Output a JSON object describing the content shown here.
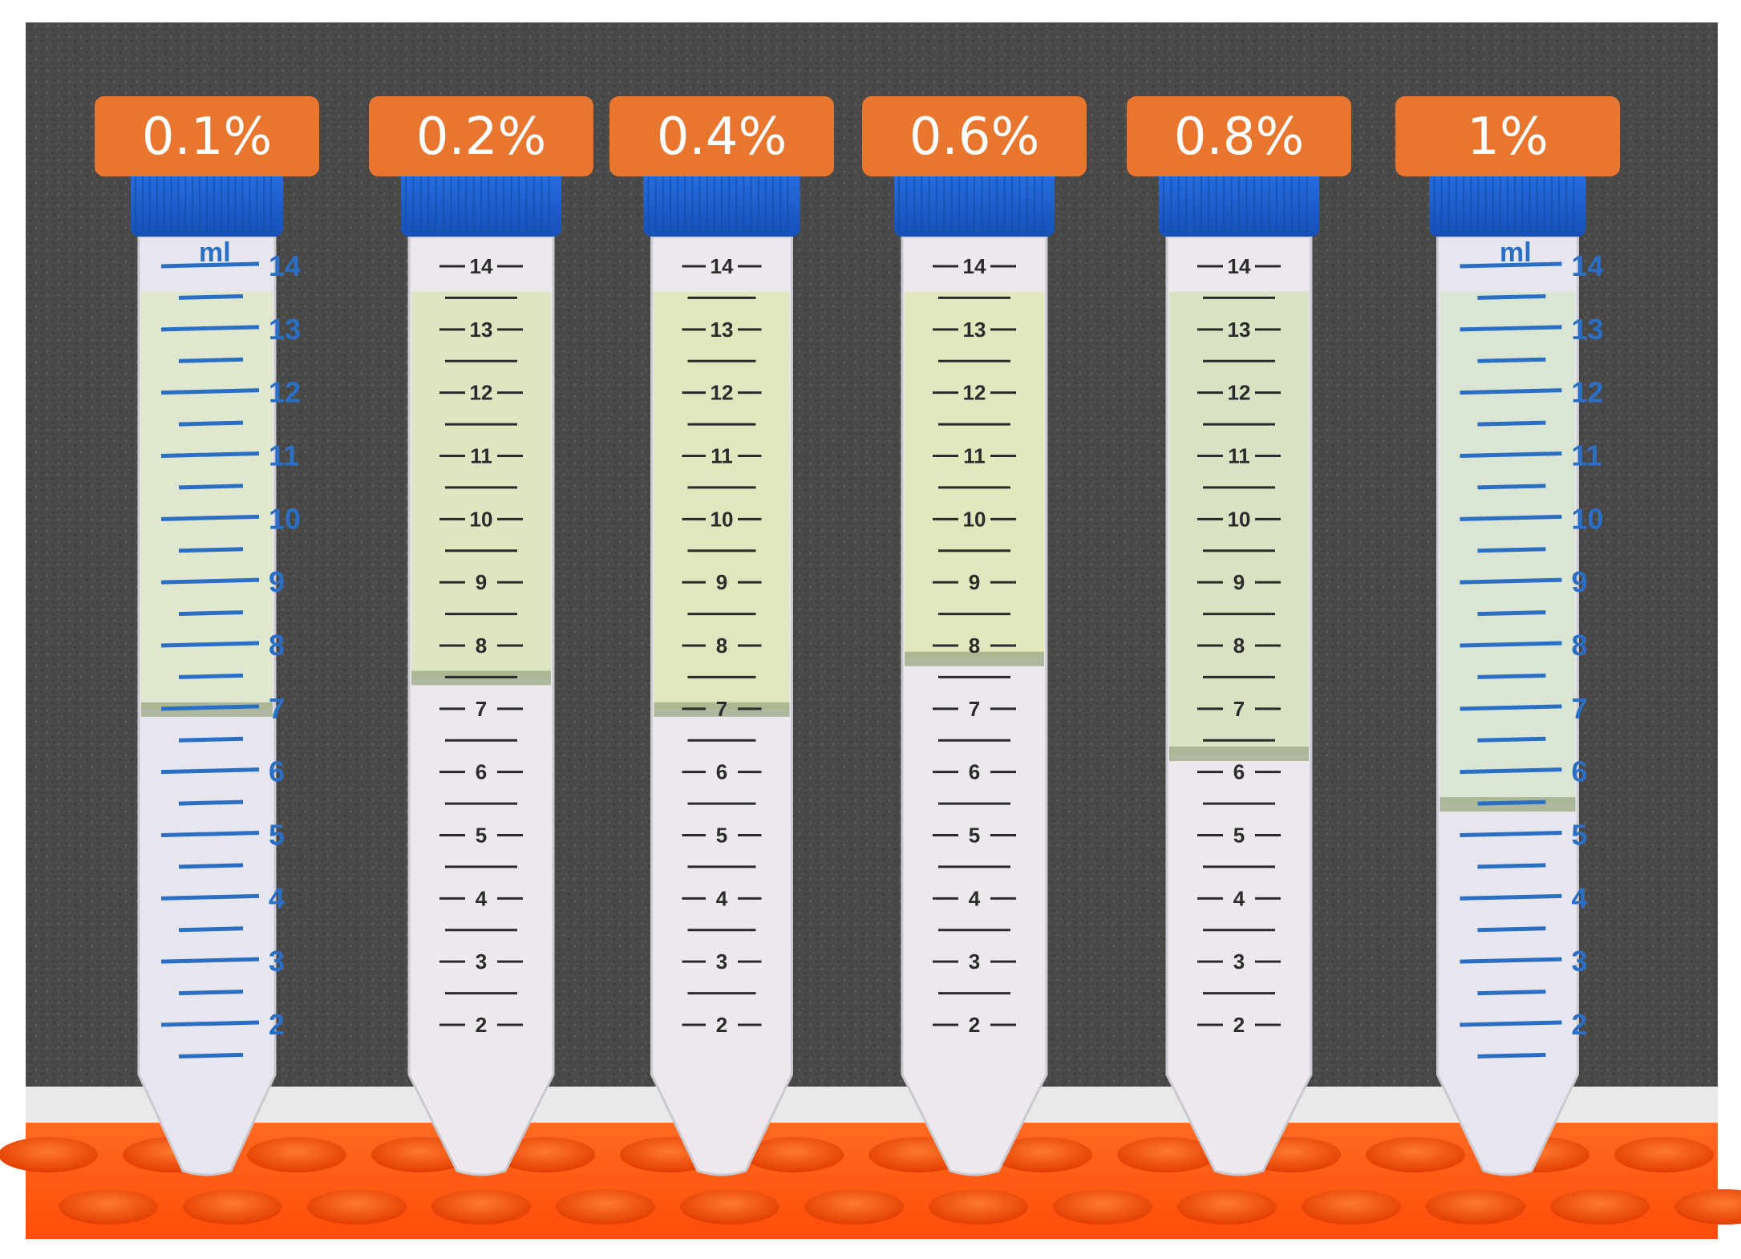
{
  "colors": {
    "label_bg": "#e8762f",
    "label_text": "#ffffff",
    "cap_blue": "#1f63d6",
    "rack_orange": "#ff5a14",
    "foam_gray": "#4d4a4a",
    "blue_ink": "#2a6fc4",
    "black_ink": "#2b2b2b"
  },
  "tubes": [
    {
      "label": "0.1%",
      "ink": "blue",
      "unit": "ml",
      "graduations": [
        "14",
        "13",
        "12",
        "11",
        "10",
        "9",
        "8",
        "7",
        "6",
        "5",
        "4",
        "3",
        "2"
      ],
      "interface_level_ml": 7.0,
      "upper_phase_color": "#dfe7cf",
      "lower_phase_color": "#e7e6ee"
    },
    {
      "label": "0.2%",
      "ink": "black",
      "unit": "",
      "graduations": [
        "14",
        "13",
        "12",
        "11",
        "10",
        "9",
        "8",
        "7",
        "6",
        "5",
        "4",
        "3",
        "2"
      ],
      "interface_level_ml": 7.5,
      "upper_phase_color": "#dde6c0",
      "lower_phase_color": "#ece8ee"
    },
    {
      "label": "0.4%",
      "ink": "black",
      "unit": "",
      "graduations": [
        "14",
        "13",
        "12",
        "11",
        "10",
        "9",
        "8",
        "7",
        "6",
        "5",
        "4",
        "3",
        "2"
      ],
      "interface_level_ml": 7.0,
      "upper_phase_color": "#e0e6bd",
      "lower_phase_color": "#ece8ee"
    },
    {
      "label": "0.6%",
      "ink": "black",
      "unit": "",
      "graduations": [
        "14",
        "13",
        "12",
        "11",
        "10",
        "9",
        "8",
        "7",
        "6",
        "5",
        "4",
        "3",
        "2"
      ],
      "interface_level_ml": 7.8,
      "upper_phase_color": "#e2e7be",
      "lower_phase_color": "#ece8ee"
    },
    {
      "label": "0.8%",
      "ink": "black",
      "unit": "",
      "graduations": [
        "14",
        "13",
        "12",
        "11",
        "10",
        "9",
        "8",
        "7",
        "6",
        "5",
        "4",
        "3",
        "2"
      ],
      "interface_level_ml": 6.3,
      "upper_phase_color": "#d9e2c3",
      "lower_phase_color": "#ece8ee"
    },
    {
      "label": "1%",
      "ink": "blue",
      "unit": "ml",
      "graduations": [
        "14",
        "13",
        "12",
        "11",
        "10",
        "9",
        "8",
        "7",
        "6",
        "5",
        "4",
        "3",
        "2"
      ],
      "interface_level_ml": 5.5,
      "upper_phase_color": "#dbe5d3",
      "lower_phase_color": "#e7e6ee"
    }
  ]
}
